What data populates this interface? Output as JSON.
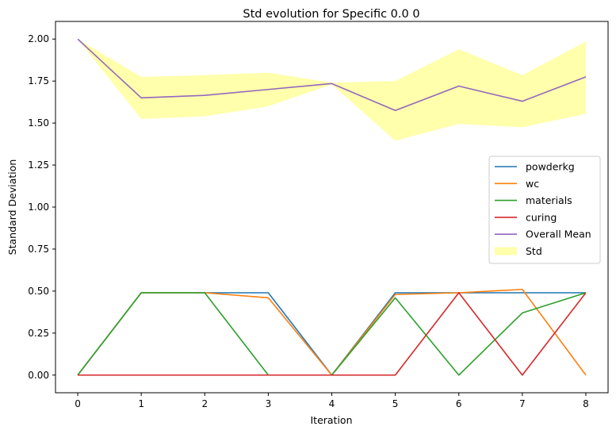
{
  "chart_data": {
    "type": "line",
    "title": "Std evolution for Specific 0.0 0",
    "xlabel": "Iteration",
    "ylabel": "Standard Deviation",
    "xlim": [
      -0.35,
      8.35
    ],
    "ylim": [
      -0.105,
      2.105
    ],
    "x": [
      0,
      1,
      2,
      3,
      4,
      5,
      6,
      7,
      8
    ],
    "xticks": [
      0,
      1,
      2,
      3,
      4,
      5,
      6,
      7,
      8
    ],
    "yticks": [
      0.0,
      0.25,
      0.5,
      0.75,
      1.0,
      1.25,
      1.5,
      1.75,
      2.0
    ],
    "ytick_labels": [
      "0.00",
      "0.25",
      "0.50",
      "0.75",
      "1.00",
      "1.25",
      "1.50",
      "1.75",
      "2.00"
    ],
    "grid": false,
    "legend_position": "center-right",
    "series": [
      {
        "name": "powderkg",
        "color": "#1f77b4",
        "values": [
          0.0,
          0.49,
          0.49,
          0.49,
          0.0,
          0.49,
          0.49,
          0.49,
          0.49
        ]
      },
      {
        "name": "wc",
        "color": "#ff7f0e",
        "values": [
          0.0,
          0.49,
          0.49,
          0.46,
          0.0,
          0.48,
          0.49,
          0.51,
          0.0
        ]
      },
      {
        "name": "materials",
        "color": "#2ca02c",
        "values": [
          0.0,
          0.49,
          0.49,
          0.0,
          0.0,
          0.46,
          0.0,
          0.37,
          0.49
        ]
      },
      {
        "name": "curing",
        "color": "#d62728",
        "values": [
          0.0,
          0.0,
          0.0,
          0.0,
          0.0,
          0.0,
          0.49,
          0.0,
          0.49
        ]
      },
      {
        "name": "Overall Mean",
        "color": "#9467bd",
        "values": [
          2.0,
          1.65,
          1.665,
          1.7,
          1.735,
          1.575,
          1.72,
          1.63,
          1.775
        ]
      }
    ],
    "band": {
      "name": "Std",
      "color": "#ffff9e",
      "upper": [
        2.0,
        1.775,
        1.785,
        1.8,
        1.74,
        1.75,
        1.94,
        1.785,
        1.985
      ],
      "lower": [
        2.0,
        1.525,
        1.54,
        1.6,
        1.73,
        1.395,
        1.495,
        1.475,
        1.555
      ]
    }
  }
}
